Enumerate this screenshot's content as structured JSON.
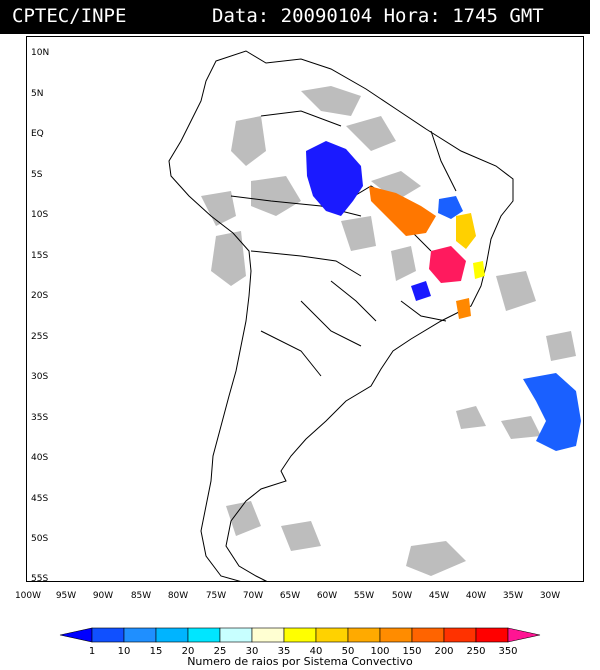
{
  "header": {
    "source": "CPTEC/INPE",
    "datetime": "Data: 20090104 Hora: 1745 GMT"
  },
  "axes": {
    "lat_labels": [
      "10N",
      "5N",
      "EQ",
      "5S",
      "10S",
      "15S",
      "20S",
      "25S",
      "30S",
      "35S",
      "40S",
      "45S",
      "50S",
      "55S"
    ],
    "lon_labels": [
      "100W",
      "95W",
      "90W",
      "85W",
      "80W",
      "75W",
      "70W",
      "65W",
      "60W",
      "55W",
      "50W",
      "45W",
      "40W",
      "35W",
      "30W"
    ]
  },
  "colorbar": {
    "title": "Numero de raios por Sistema Convectivo",
    "ticks": [
      "1",
      "10",
      "15",
      "20",
      "25",
      "30",
      "35",
      "40",
      "50",
      "100",
      "150",
      "200",
      "250",
      "350"
    ],
    "colors": [
      "#0000ff",
      "#1050ff",
      "#1f8fff",
      "#00b4ff",
      "#00e6ff",
      "#c8ffff",
      "#ffffd2",
      "#ffff00",
      "#ffd200",
      "#ffaa00",
      "#ff8c00",
      "#ff6400",
      "#ff3200",
      "#ff0000",
      "#ff1493"
    ]
  },
  "colors": {
    "cloud": "#bdbdbd",
    "coast": "#000000"
  }
}
